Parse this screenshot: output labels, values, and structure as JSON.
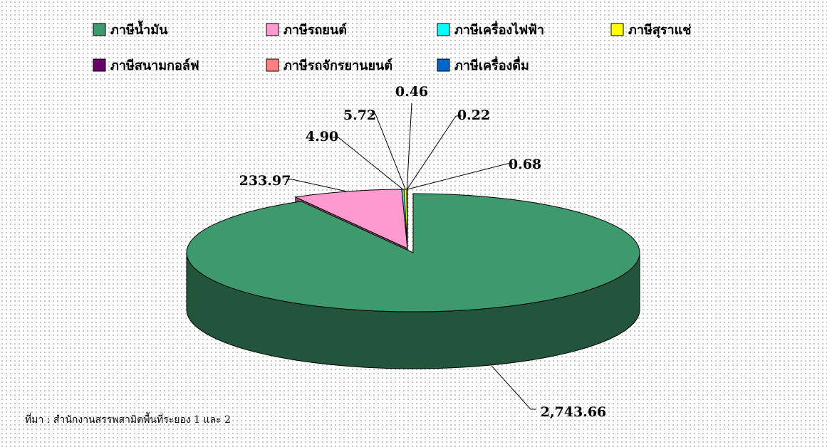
{
  "chart_data": {
    "type": "pie",
    "categories": [
      "ภาษีน้ำมัน",
      "ภาษีรถยนต์",
      "ภาษีเครื่องไฟฟ้า",
      "ภาษีสุราแช่",
      "ภาษีสนามกอล์ฟ",
      "ภาษีรถจักรยานยนต์",
      "ภาษีเครื่องดื่ม"
    ],
    "values": [
      2743.66,
      233.97,
      4.9,
      5.72,
      0.46,
      0.22,
      0.68
    ],
    "value_labels": [
      "2,743.66",
      "233.97",
      "4.90",
      "5.72",
      "0.46",
      "0.22",
      "0.68"
    ],
    "colors": [
      "#3e9a6c",
      "#ff9ad0",
      "#00ffff",
      "#ffff00",
      "#660066",
      "#ff8080",
      "#0066cc"
    ],
    "source": "ที่มา : สำนักงานสรรพสามิตพื้นที่ระยอง 1 และ 2",
    "legend": "top"
  }
}
